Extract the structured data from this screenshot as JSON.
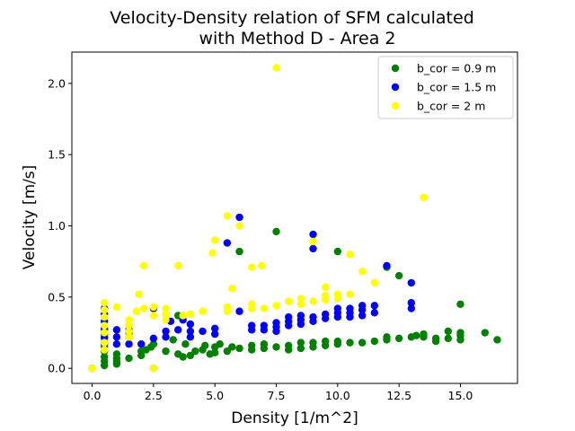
{
  "chart_data": {
    "type": "scatter",
    "title_lines": [
      "Velocity-Density relation of SFM calculated",
      "with Method D - Area 2"
    ],
    "xlabel": "Density [1/m^2]",
    "ylabel": "Velocity [m/s]",
    "xlim": [
      -0.825,
      17.325
    ],
    "ylim": [
      -0.106,
      2.22
    ],
    "xticks": [
      0.0,
      2.5,
      5.0,
      7.5,
      10.0,
      12.5,
      15.0
    ],
    "xtick_labels": [
      "0.0",
      "2.5",
      "5.0",
      "7.5",
      "10.0",
      "12.5",
      "15.0"
    ],
    "yticks": [
      0.0,
      0.5,
      1.0,
      1.5,
      2.0
    ],
    "ytick_labels": [
      "0.0",
      "0.5",
      "1.0",
      "1.5",
      "2.0"
    ],
    "grid": false,
    "legend_position": "top-right",
    "series": [
      {
        "name": "b_cor = 0.9 m",
        "color": "#008000",
        "points": [
          [
            0.0,
            0.0
          ],
          [
            0.5,
            0.02
          ],
          [
            0.5,
            0.05
          ],
          [
            0.5,
            0.08
          ],
          [
            0.5,
            0.12
          ],
          [
            0.5,
            0.15
          ],
          [
            0.5,
            0.18
          ],
          [
            0.5,
            0.21
          ],
          [
            0.5,
            0.24
          ],
          [
            0.5,
            0.27
          ],
          [
            1.0,
            0.03
          ],
          [
            1.0,
            0.05
          ],
          [
            1.0,
            0.07
          ],
          [
            1.0,
            0.1
          ],
          [
            1.5,
            0.07
          ],
          [
            1.5,
            0.25
          ],
          [
            2.0,
            0.09
          ],
          [
            2.0,
            0.12
          ],
          [
            2.5,
            0.0
          ],
          [
            2.2,
            0.13
          ],
          [
            2.4,
            0.15
          ],
          [
            2.5,
            0.17
          ],
          [
            3.0,
            0.12
          ],
          [
            3.3,
            0.2
          ],
          [
            3.5,
            0.1
          ],
          [
            3.5,
            0.37
          ],
          [
            3.7,
            0.08
          ],
          [
            3.8,
            0.17
          ],
          [
            4.0,
            0.09
          ],
          [
            4.2,
            0.12
          ],
          [
            4.5,
            0.13
          ],
          [
            4.6,
            0.16
          ],
          [
            4.8,
            0.1
          ],
          [
            5.0,
            0.11
          ],
          [
            5.0,
            0.15
          ],
          [
            5.2,
            0.17
          ],
          [
            5.5,
            0.12
          ],
          [
            5.7,
            0.15
          ],
          [
            6.0,
            0.14
          ],
          [
            6.0,
            0.82
          ],
          [
            6.5,
            0.13
          ],
          [
            6.5,
            0.16
          ],
          [
            7.0,
            0.14
          ],
          [
            7.0,
            0.17
          ],
          [
            7.5,
            0.15
          ],
          [
            7.5,
            0.96
          ],
          [
            8.0,
            0.13
          ],
          [
            8.0,
            0.16
          ],
          [
            8.5,
            0.14
          ],
          [
            8.5,
            0.18
          ],
          [
            9.0,
            0.15
          ],
          [
            9.0,
            0.18
          ],
          [
            9.5,
            0.16
          ],
          [
            9.5,
            0.19
          ],
          [
            10.0,
            0.17
          ],
          [
            10.0,
            0.19
          ],
          [
            10.0,
            0.82
          ],
          [
            10.5,
            0.18
          ],
          [
            11.0,
            0.18
          ],
          [
            11.5,
            0.19
          ],
          [
            12.0,
            0.2
          ],
          [
            12.0,
            0.22
          ],
          [
            12.0,
            0.71
          ],
          [
            12.5,
            0.21
          ],
          [
            12.5,
            0.65
          ],
          [
            13.0,
            0.22
          ],
          [
            13.2,
            0.23
          ],
          [
            13.5,
            0.22
          ],
          [
            13.5,
            0.24
          ],
          [
            14.0,
            0.19
          ],
          [
            14.0,
            0.21
          ],
          [
            14.5,
            0.21
          ],
          [
            14.5,
            0.26
          ],
          [
            15.0,
            0.2
          ],
          [
            15.0,
            0.23
          ],
          [
            15.0,
            0.25
          ],
          [
            15.0,
            0.45
          ],
          [
            16.0,
            0.25
          ],
          [
            16.5,
            0.2
          ]
        ]
      },
      {
        "name": "b_cor = 1.5 m",
        "color": "#0000ff",
        "points": [
          [
            0.5,
            0.17
          ],
          [
            0.5,
            0.22
          ],
          [
            0.5,
            0.28
          ],
          [
            0.5,
            0.33
          ],
          [
            0.5,
            0.38
          ],
          [
            0.5,
            0.42
          ],
          [
            1.0,
            0.17
          ],
          [
            1.0,
            0.22
          ],
          [
            1.0,
            0.27
          ],
          [
            1.5,
            0.17
          ],
          [
            1.5,
            0.22
          ],
          [
            1.5,
            0.27
          ],
          [
            2.0,
            0.17
          ],
          [
            2.5,
            0.21
          ],
          [
            2.5,
            0.42
          ],
          [
            3.0,
            0.22
          ],
          [
            3.0,
            0.26
          ],
          [
            3.2,
            0.33
          ],
          [
            3.5,
            0.27
          ],
          [
            3.7,
            0.34
          ],
          [
            4.0,
            0.22
          ],
          [
            4.0,
            0.26
          ],
          [
            4.0,
            0.31
          ],
          [
            4.5,
            0.26
          ],
          [
            5.0,
            0.24
          ],
          [
            5.0,
            0.28
          ],
          [
            5.5,
            0.88
          ],
          [
            6.0,
            0.4
          ],
          [
            6.0,
            1.06
          ],
          [
            6.5,
            0.27
          ],
          [
            6.5,
            0.3
          ],
          [
            7.0,
            0.27
          ],
          [
            7.0,
            0.3
          ],
          [
            7.5,
            0.26
          ],
          [
            7.5,
            0.29
          ],
          [
            7.5,
            0.32
          ],
          [
            8.0,
            0.3
          ],
          [
            8.0,
            0.33
          ],
          [
            8.0,
            0.36
          ],
          [
            8.5,
            0.31
          ],
          [
            8.5,
            0.34
          ],
          [
            8.5,
            0.37
          ],
          [
            9.0,
            0.33
          ],
          [
            9.0,
            0.36
          ],
          [
            9.0,
            0.84
          ],
          [
            9.0,
            0.94
          ],
          [
            9.5,
            0.35
          ],
          [
            9.5,
            0.38
          ],
          [
            10.0,
            0.36
          ],
          [
            10.0,
            0.39
          ],
          [
            10.0,
            0.42
          ],
          [
            10.5,
            0.36
          ],
          [
            10.5,
            0.39
          ],
          [
            10.5,
            0.42
          ],
          [
            11.0,
            0.37
          ],
          [
            11.0,
            0.41
          ],
          [
            11.0,
            0.44
          ],
          [
            11.5,
            0.39
          ],
          [
            11.5,
            0.44
          ],
          [
            12.0,
            0.72
          ],
          [
            13.0,
            0.42
          ],
          [
            13.0,
            0.46
          ],
          [
            13.0,
            0.6
          ]
        ]
      },
      {
        "name": "b_cor = 2 m",
        "color": "#ffff00",
        "points": [
          [
            0.0,
            0.0
          ],
          [
            0.5,
            0.13
          ],
          [
            0.5,
            0.18
          ],
          [
            0.5,
            0.25
          ],
          [
            0.5,
            0.3
          ],
          [
            0.5,
            0.36
          ],
          [
            0.5,
            0.41
          ],
          [
            0.5,
            0.46
          ],
          [
            1.0,
            0.43
          ],
          [
            1.5,
            0.22
          ],
          [
            1.5,
            0.26
          ],
          [
            1.5,
            0.3
          ],
          [
            1.5,
            0.34
          ],
          [
            1.8,
            0.4
          ],
          [
            1.9,
            0.52
          ],
          [
            2.1,
            0.42
          ],
          [
            2.1,
            0.72
          ],
          [
            2.5,
            0.0
          ],
          [
            2.5,
            0.37
          ],
          [
            2.5,
            0.43
          ],
          [
            3.0,
            0.34
          ],
          [
            3.0,
            0.38
          ],
          [
            3.0,
            0.42
          ],
          [
            3.5,
            0.72
          ],
          [
            3.7,
            0.37
          ],
          [
            4.0,
            0.38
          ],
          [
            4.5,
            0.4
          ],
          [
            4.9,
            0.81
          ],
          [
            5.0,
            0.9
          ],
          [
            5.5,
            0.4
          ],
          [
            5.5,
            0.43
          ],
          [
            5.5,
            1.07
          ],
          [
            5.7,
            0.56
          ],
          [
            6.0,
            1.0
          ],
          [
            6.5,
            0.42
          ],
          [
            6.5,
            0.45
          ],
          [
            6.5,
            0.71
          ],
          [
            6.9,
            0.72
          ],
          [
            7.0,
            0.42
          ],
          [
            7.5,
            0.44
          ],
          [
            7.5,
            2.11
          ],
          [
            8.0,
            0.47
          ],
          [
            8.5,
            0.45
          ],
          [
            8.5,
            0.49
          ],
          [
            9.0,
            0.47
          ],
          [
            9.0,
            0.89
          ],
          [
            9.5,
            0.48
          ],
          [
            9.5,
            0.51
          ],
          [
            9.5,
            0.57
          ],
          [
            10.0,
            0.49
          ],
          [
            10.0,
            0.52
          ],
          [
            10.5,
            0.52
          ],
          [
            10.5,
            0.8
          ],
          [
            11.0,
            0.68
          ],
          [
            11.5,
            0.6
          ],
          [
            13.5,
            1.2
          ]
        ]
      }
    ]
  }
}
